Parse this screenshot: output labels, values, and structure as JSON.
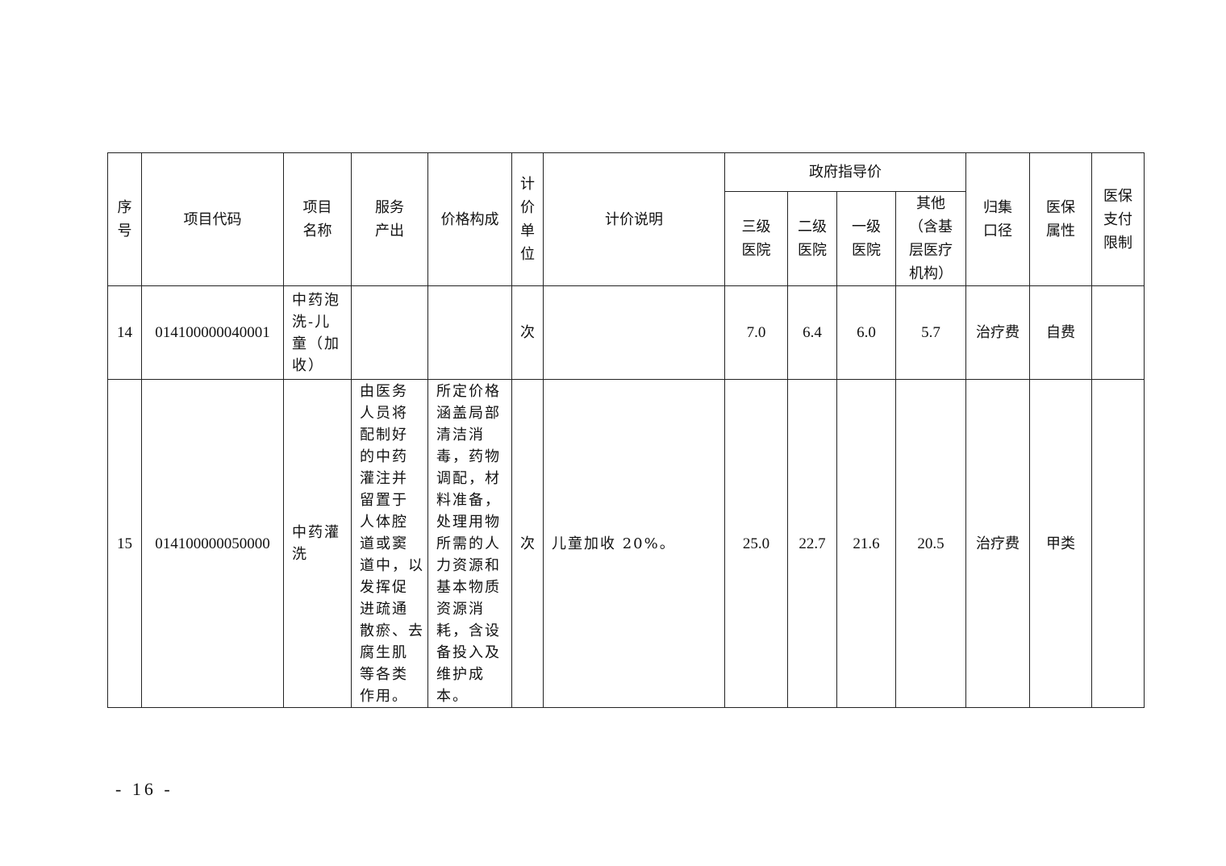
{
  "headers": {
    "seq": "序\n号",
    "code": "项目代码",
    "name": "项目\n名称",
    "output": "服务\n产出",
    "composition": "价格构成",
    "unit": "计\n价\n单\n位",
    "note": "计价说明",
    "gov_price": "政府指导价",
    "level3": "三级\n医院",
    "level2": "二级\n医院",
    "level1": "一级\n医院",
    "other": "其他\n（含基\n层医疗\n机构）",
    "category": "归集\n口径",
    "insurance": "医保\n属性",
    "limit": "医保\n支付\n限制"
  },
  "rows": [
    {
      "seq": "14",
      "code": "014100000040001",
      "name": "中药泡\n洗-儿\n童（加\n收）",
      "output": "",
      "composition": "",
      "unit": "次",
      "note": "",
      "level3": "7.0",
      "level2": "6.4",
      "level1": "6.0",
      "other": "5.7",
      "category": "治疗费",
      "insurance": "自费",
      "limit": ""
    },
    {
      "seq": "15",
      "code": "014100000050000",
      "name": "中药灌\n洗",
      "output": "由医务\n人员将\n配制好\n的中药\n灌注并\n留置于\n人体腔\n道或窦\n道中，以\n发挥促\n进疏通\n散瘀、去\n腐生肌\n等各类\n作用。",
      "composition": "所定价格\n涵盖局部\n清洁消\n毒，药物\n调配，材\n料准备，\n处理用物\n所需的人\n力资源和\n基本物质\n资源消\n耗，含设\n备投入及\n维护成\n本。",
      "unit": "次",
      "note": "儿童加收 20%。",
      "level3": "25.0",
      "level2": "22.7",
      "level1": "21.6",
      "other": "20.5",
      "category": "治疗费",
      "insurance": "甲类",
      "limit": ""
    }
  ],
  "footer": {
    "page_number": "- 16 -"
  }
}
